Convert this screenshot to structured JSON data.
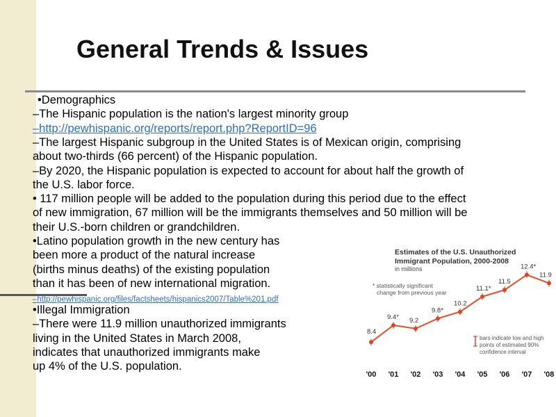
{
  "slide": {
    "title": "General Trends & Issues",
    "lines": [
      "•Demographics",
      "–The Hispanic population is the nation's largest minority group",
      "–http://pewhispanic.org/reports/report.php?ReportID=96",
      "–The largest Hispanic subgroup in the United States is of Mexican origin, comprising",
      "about two-thirds (66 percent) of the Hispanic population.",
      "–By 2020, the Hispanic population is expected to account for about half the growth of",
      "the U.S. labor force.",
      "• 117 million people will be added to the population during this period due to the effect",
      "of new immigration, 67 million will be the immigrants themselves and 50 million will be",
      "their U.S.-born children or grandchildren.",
      "•Latino population growth in the new century has",
      "been more a product of the natural increase",
      "(births minus deaths) of the existing population",
      " than it has been of new international migration.",
      "–http://pewhispanic.org/files/factsheets/hispanics2007/Table%201.pdf",
      "•Illegal Immigration",
      "–There were 11.9 million unauthorized immigrants",
      " living in the United States in March 2008,",
      "indicates that unauthorized immigrants make",
      "up 4% of the U.S. population."
    ]
  },
  "chart_data": {
    "type": "line",
    "title": "Estimates of the U.S. Unauthorized Immigrant Population, 2000-2008",
    "subtitle": "in millions",
    "categories": [
      "'00",
      "'01",
      "'02",
      "'03",
      "'04",
      "'05",
      "'06",
      "'07",
      "'08"
    ],
    "x": [
      2000,
      2001,
      2002,
      2003,
      2004,
      2005,
      2006,
      2007,
      2008
    ],
    "values": [
      8.4,
      9.4,
      9.2,
      9.8,
      10.2,
      11.1,
      11.5,
      12.4,
      11.9
    ],
    "labels": [
      "8.4",
      "9.4*",
      "9.2",
      "9.8*",
      "10.2",
      "11.1*",
      "11.5",
      "12.4*",
      "11.9"
    ],
    "ylim": [
      7.5,
      13.2
    ],
    "annotations": [
      "* statistically significant",
      "change from previous year",
      "bars indicate low and high",
      "points of estimated 90%",
      "confidence interval"
    ],
    "colors": {
      "line": "#e05a3a",
      "point": "#d8452a",
      "text": "#333333"
    }
  }
}
